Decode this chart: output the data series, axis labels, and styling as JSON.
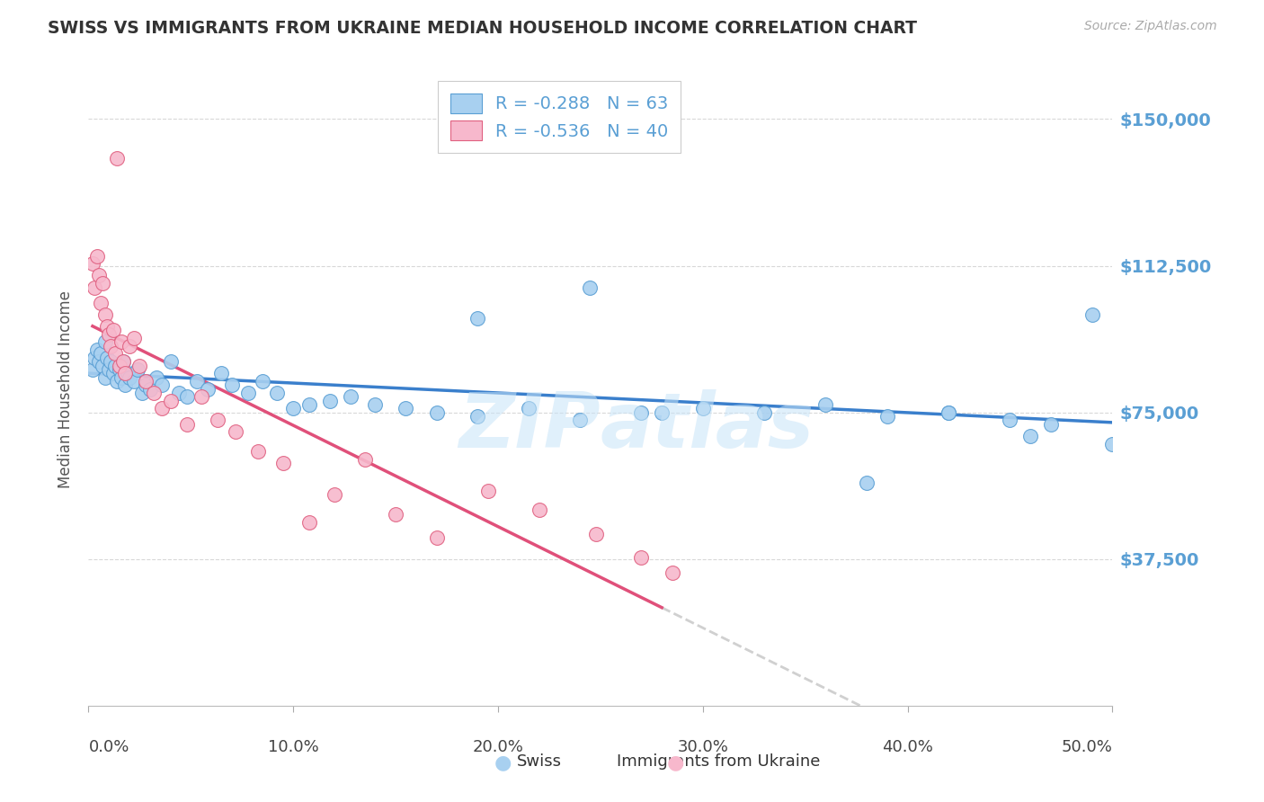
{
  "title": "SWISS VS IMMIGRANTS FROM UKRAINE MEDIAN HOUSEHOLD INCOME CORRELATION CHART",
  "source": "Source: ZipAtlas.com",
  "ylabel": "Median Household Income",
  "yticks": [
    0,
    37500,
    75000,
    112500,
    150000
  ],
  "ytick_labels": [
    "",
    "$37,500",
    "$75,000",
    "$112,500",
    "$150,000"
  ],
  "ylim": [
    0,
    162000
  ],
  "xlim": [
    0.0,
    0.5
  ],
  "xtick_labels": [
    "0.0%",
    "10.0%",
    "20.0%",
    "30.0%",
    "40.0%",
    "50.0%"
  ],
  "watermark": "ZIPatlas",
  "legend_swiss_R": "-0.288",
  "legend_swiss_N": "63",
  "legend_ukraine_R": "-0.536",
  "legend_ukraine_N": "40",
  "swiss_color": "#a8d0f0",
  "ukraine_color": "#f7b8cc",
  "swiss_edge_color": "#5a9fd4",
  "ukraine_edge_color": "#e06080",
  "swiss_line_color": "#3a7fcc",
  "ukraine_line_color": "#e0507a",
  "dashed_line_color": "#d0d0d0",
  "grid_color": "#d8d8d8",
  "title_color": "#333333",
  "axis_label_color": "#555555",
  "right_tick_color": "#5a9fd4",
  "legend_text_color": "#5a9fd4",
  "swiss_x": [
    0.002,
    0.003,
    0.004,
    0.005,
    0.006,
    0.007,
    0.008,
    0.008,
    0.009,
    0.01,
    0.011,
    0.012,
    0.013,
    0.014,
    0.015,
    0.016,
    0.017,
    0.018,
    0.019,
    0.02,
    0.022,
    0.024,
    0.026,
    0.028,
    0.03,
    0.033,
    0.036,
    0.04,
    0.044,
    0.048,
    0.053,
    0.058,
    0.065,
    0.07,
    0.078,
    0.085,
    0.092,
    0.1,
    0.108,
    0.118,
    0.128,
    0.14,
    0.155,
    0.17,
    0.19,
    0.215,
    0.24,
    0.27,
    0.3,
    0.33,
    0.36,
    0.39,
    0.42,
    0.45,
    0.47,
    0.49,
    0.5,
    0.245,
    0.19,
    0.38,
    0.28,
    0.42,
    0.46
  ],
  "swiss_y": [
    86000,
    89000,
    91000,
    88000,
    90000,
    87000,
    84000,
    93000,
    89000,
    86000,
    88000,
    85000,
    87000,
    83000,
    86000,
    84000,
    88000,
    82000,
    85000,
    84000,
    83000,
    86000,
    80000,
    82000,
    81000,
    84000,
    82000,
    88000,
    80000,
    79000,
    83000,
    81000,
    85000,
    82000,
    80000,
    83000,
    80000,
    76000,
    77000,
    78000,
    79000,
    77000,
    76000,
    75000,
    74000,
    76000,
    73000,
    75000,
    76000,
    75000,
    77000,
    74000,
    75000,
    73000,
    72000,
    100000,
    67000,
    107000,
    99000,
    57000,
    75000,
    75000,
    69000
  ],
  "ukraine_x": [
    0.002,
    0.003,
    0.004,
    0.005,
    0.006,
    0.007,
    0.008,
    0.009,
    0.01,
    0.011,
    0.012,
    0.013,
    0.014,
    0.015,
    0.016,
    0.017,
    0.018,
    0.02,
    0.022,
    0.025,
    0.028,
    0.032,
    0.036,
    0.04,
    0.048,
    0.055,
    0.063,
    0.072,
    0.083,
    0.095,
    0.108,
    0.12,
    0.135,
    0.15,
    0.17,
    0.195,
    0.22,
    0.248,
    0.27,
    0.285
  ],
  "ukraine_y": [
    113000,
    107000,
    115000,
    110000,
    103000,
    108000,
    100000,
    97000,
    95000,
    92000,
    96000,
    90000,
    140000,
    87000,
    93000,
    88000,
    85000,
    92000,
    94000,
    87000,
    83000,
    80000,
    76000,
    78000,
    72000,
    79000,
    73000,
    70000,
    65000,
    62000,
    47000,
    54000,
    63000,
    49000,
    43000,
    55000,
    50000,
    44000,
    38000,
    34000
  ]
}
